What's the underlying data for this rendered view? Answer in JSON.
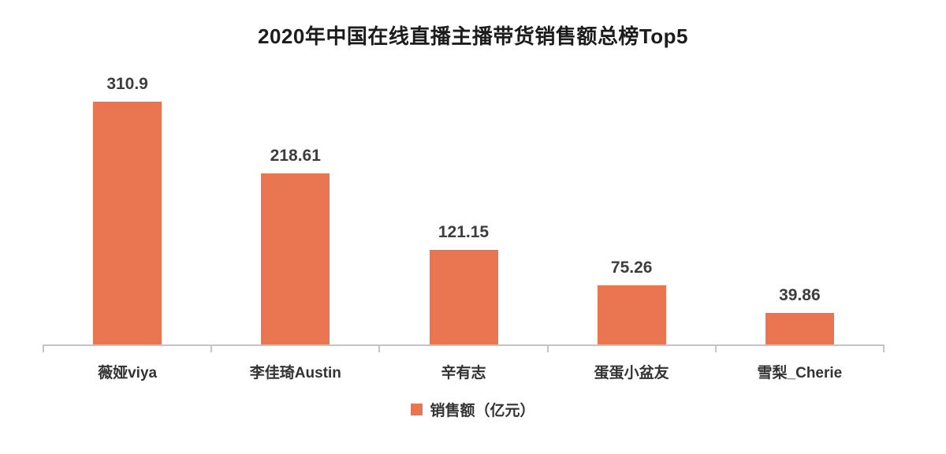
{
  "chart_data": {
    "type": "bar",
    "title": "2020年中国在线直播主播带货销售额总榜Top5",
    "categories": [
      "薇娅viya",
      "李佳琦Austin",
      "辛有志",
      "蛋蛋小盆友",
      "雪梨_Cherie"
    ],
    "values": [
      310.9,
      218.61,
      121.15,
      75.26,
      39.86
    ],
    "value_labels": [
      "310.9",
      "218.61",
      "121.15",
      "75.26",
      "39.86"
    ],
    "series_name": "销售额（亿元）",
    "xlabel": "",
    "ylabel": "",
    "ylim": [
      0,
      350
    ],
    "grid": false,
    "legend_position": "bottom",
    "colors": {
      "bar": "#ea7551",
      "axis": "#c4c4c4",
      "title": "#1c1c1c",
      "value_label": "#3d3d3d",
      "category_label": "#333333",
      "background": "#ffffff"
    }
  }
}
